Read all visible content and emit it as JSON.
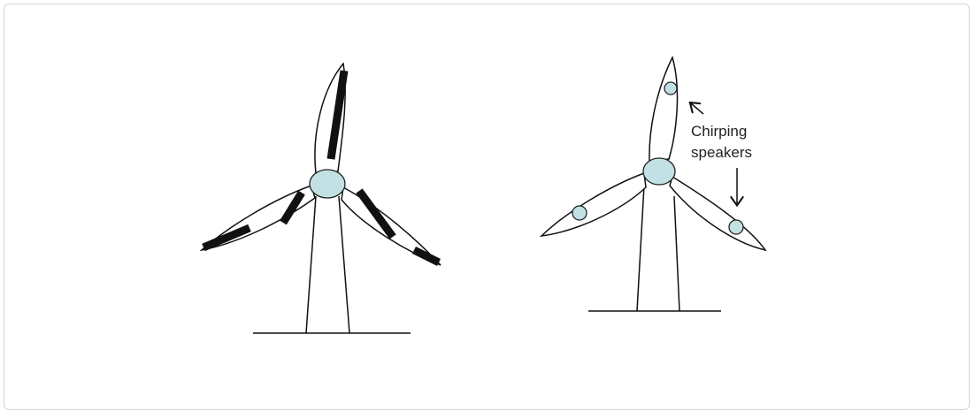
{
  "annotation": {
    "lines": [
      "Chirping",
      "speakers"
    ]
  }
}
